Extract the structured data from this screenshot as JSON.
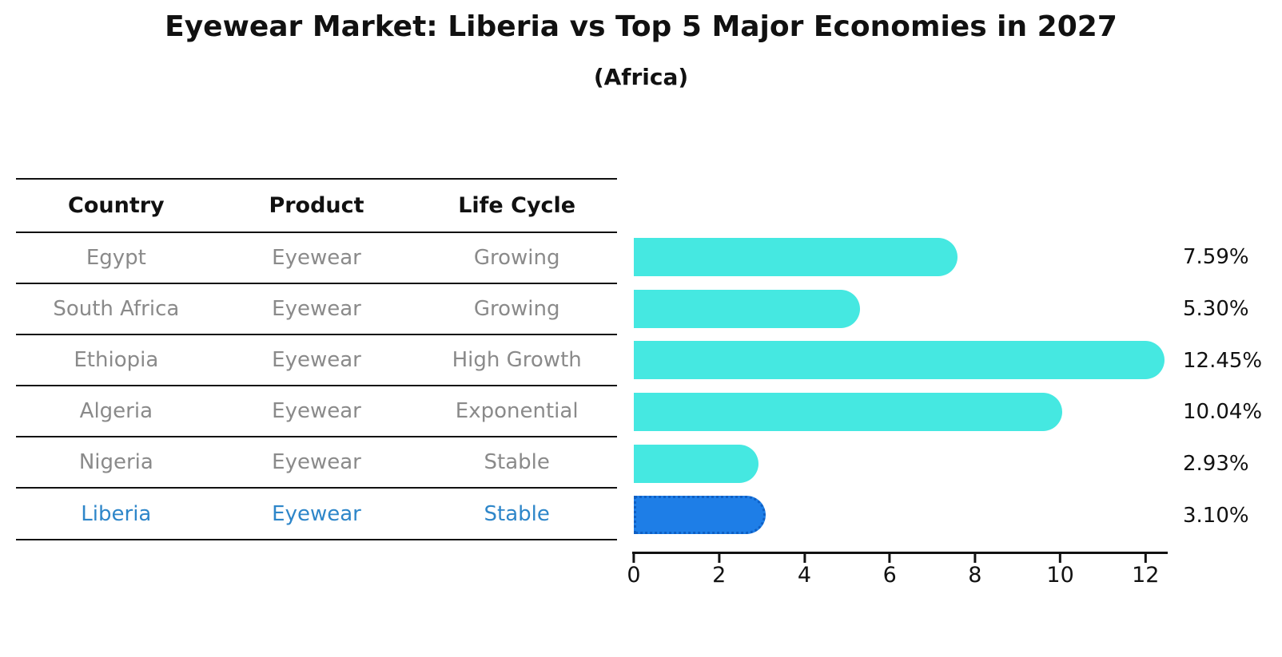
{
  "title": "Eyewear Market: Liberia vs Top 5 Major Economies in 2027",
  "subtitle": "(Africa)",
  "table": {
    "headers": [
      "Country",
      "Product",
      "Life Cycle"
    ],
    "rows": [
      {
        "country": "Egypt",
        "product": "Eyewear",
        "life_cycle": "Growing",
        "highlight": false
      },
      {
        "country": "South Africa",
        "product": "Eyewear",
        "life_cycle": "Growing",
        "highlight": false
      },
      {
        "country": "Ethiopia",
        "product": "Eyewear",
        "life_cycle": "High Growth",
        "highlight": false
      },
      {
        "country": "Algeria",
        "product": "Eyewear",
        "life_cycle": "Exponential",
        "highlight": false
      },
      {
        "country": "Nigeria",
        "product": "Eyewear",
        "life_cycle": "Stable",
        "highlight": false
      },
      {
        "country": "Liberia",
        "product": "Eyewear",
        "life_cycle": "Stable",
        "highlight": true
      }
    ]
  },
  "chart_data": {
    "type": "bar",
    "orientation": "horizontal",
    "title": "Eyewear Market: Liberia vs Top 5 Major Economies in 2027 (Africa)",
    "categories": [
      "Egypt",
      "South Africa",
      "Ethiopia",
      "Algeria",
      "Nigeria",
      "Liberia"
    ],
    "values": [
      7.59,
      5.3,
      12.45,
      10.04,
      2.93,
      3.1
    ],
    "value_labels": [
      "7.59%",
      "5.30%",
      "12.45%",
      "10.04%",
      "2.93%",
      "3.10%"
    ],
    "x_ticks": [
      0,
      2,
      4,
      6,
      8,
      10,
      12
    ],
    "xlim": [
      0,
      12.5
    ],
    "grid": false,
    "legend": "none",
    "highlight_index": 5,
    "bar_color": "#45e8e1",
    "highlight_bar_color": "#1e7ee7",
    "highlight_text_color": "#2e86c9",
    "row_text_color": "#8a8a8a"
  }
}
